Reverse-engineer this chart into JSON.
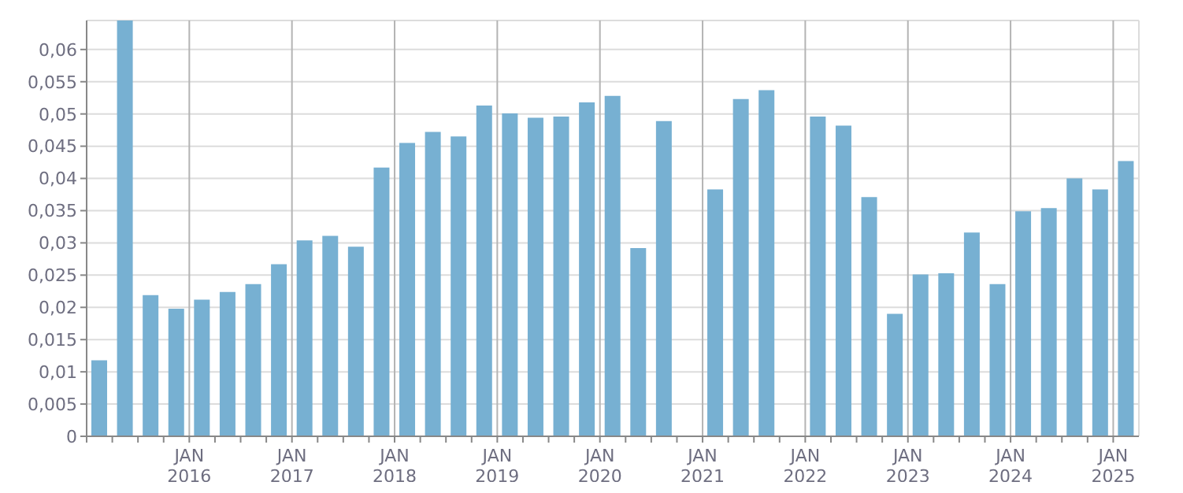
{
  "chart_data": {
    "type": "bar",
    "categories": [
      null,
      null,
      null,
      null,
      "JAN 2016",
      null,
      null,
      null,
      "JAN 2017",
      null,
      null,
      null,
      "JAN 2018",
      null,
      null,
      null,
      "JAN 2019",
      null,
      null,
      null,
      "JAN 2020",
      null,
      null,
      null,
      "JAN 2021",
      null,
      null,
      null,
      "JAN 2022",
      null,
      null,
      null,
      "JAN 2023",
      null,
      null,
      null,
      "JAN 2024",
      null,
      null,
      null,
      "JAN 2025"
    ],
    "values": [
      0.0118,
      0.0645,
      0.0219,
      0.0198,
      0.0212,
      0.0224,
      0.0236,
      0.0267,
      0.0304,
      0.0311,
      0.0294,
      0.0417,
      0.0455,
      0.0472,
      0.0465,
      0.0513,
      0.0501,
      0.0494,
      0.0496,
      0.0518,
      0.0528,
      0.0292,
      0.0489,
      null,
      0.0383,
      0.0523,
      0.0537,
      null,
      0.0496,
      0.0482,
      0.0371,
      0.019,
      0.0251,
      0.0253,
      0.0316,
      0.0236,
      0.0349,
      0.0354,
      0.04,
      0.0383,
      0.0427
    ],
    "color": "#77b0d2",
    "ylim": [
      0,
      0.0645
    ],
    "yticks": [
      {
        "value": 0,
        "label": "0"
      },
      {
        "value": 0.005,
        "label": "0,005"
      },
      {
        "value": 0.01,
        "label": "0,01"
      },
      {
        "value": 0.015,
        "label": "0,015"
      },
      {
        "value": 0.02,
        "label": "0,02"
      },
      {
        "value": 0.025,
        "label": "0,025"
      },
      {
        "value": 0.03,
        "label": "0,03"
      },
      {
        "value": 0.035,
        "label": "0,035"
      },
      {
        "value": 0.04,
        "label": "0,04"
      },
      {
        "value": 0.045,
        "label": "0,045"
      },
      {
        "value": 0.05,
        "label": "0,05"
      },
      {
        "value": 0.055,
        "label": "0,055"
      },
      {
        "value": 0.06,
        "label": "0,06"
      }
    ],
    "grid": true
  }
}
